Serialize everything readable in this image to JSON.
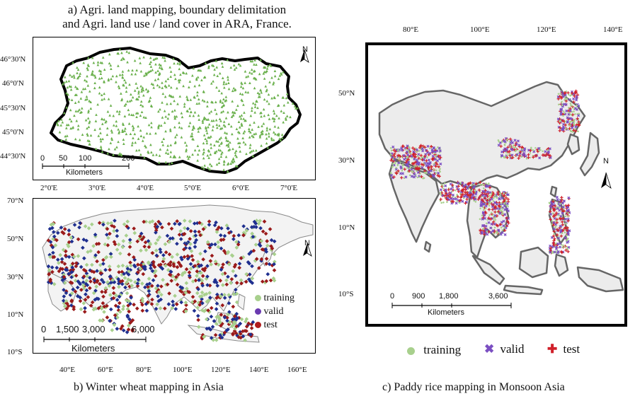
{
  "panel_a": {
    "title_line1": "a)   Agri. land mapping, boundary delimitation",
    "title_line2": "and Agri. land use / land cover in ARA, France.",
    "lat_ticks": [
      "46°30'N",
      "46°0'N",
      "45°30'N",
      "45°0'N",
      "44°30'N"
    ],
    "lon_ticks": [
      "2°0'E",
      "3°0'E",
      "4°0'E",
      "5°0'E",
      "6°0'E",
      "7°0'E"
    ],
    "scale_labels": [
      "0",
      "50",
      "100",
      "200"
    ],
    "scale_unit": "Kilometers",
    "north": "N",
    "point_color": "#6ab04c",
    "outline_color": "#000000"
  },
  "panel_b": {
    "caption": "b) Winter wheat mapping in Asia",
    "lat_ticks": [
      "70°N",
      "50°N",
      "30°N",
      "10°N",
      "10°S"
    ],
    "lon_ticks": [
      "40°E",
      "60°E",
      "80°E",
      "100°E",
      "120°E",
      "140°E",
      "160°E"
    ],
    "scale_labels": [
      "0",
      "1,500",
      "3,000",
      "6,000"
    ],
    "scale_unit": "Kilometers",
    "north": "N",
    "legend": [
      {
        "label": "training",
        "color": "#a8d08d"
      },
      {
        "label": "valid",
        "color": "#6a3ab0"
      },
      {
        "label": "test",
        "color": "#b01c1c"
      }
    ],
    "marker_blue": "#1f2f8f",
    "marker_red": "#9a1a1a"
  },
  "panel_c": {
    "caption": "c) Paddy rice mapping in Monsoon Asia",
    "lat_ticks": [
      "50°N",
      "30°N",
      "10°N",
      "10°S"
    ],
    "lon_ticks": [
      "80°E",
      "100°E",
      "120°E",
      "140°E"
    ],
    "scale_labels": [
      "0",
      "900",
      "1,800",
      "3,600"
    ],
    "scale_unit": "Kilometers",
    "north": "N",
    "legend": [
      {
        "label": "training",
        "color": "#a8d08d",
        "symbol": "●"
      },
      {
        "label": "valid",
        "color": "#7b4fc2",
        "symbol": "✖"
      },
      {
        "label": "test",
        "color": "#d0202a",
        "symbol": "✚"
      }
    ],
    "land_color": "#ececec",
    "coast_color": "#666666"
  }
}
